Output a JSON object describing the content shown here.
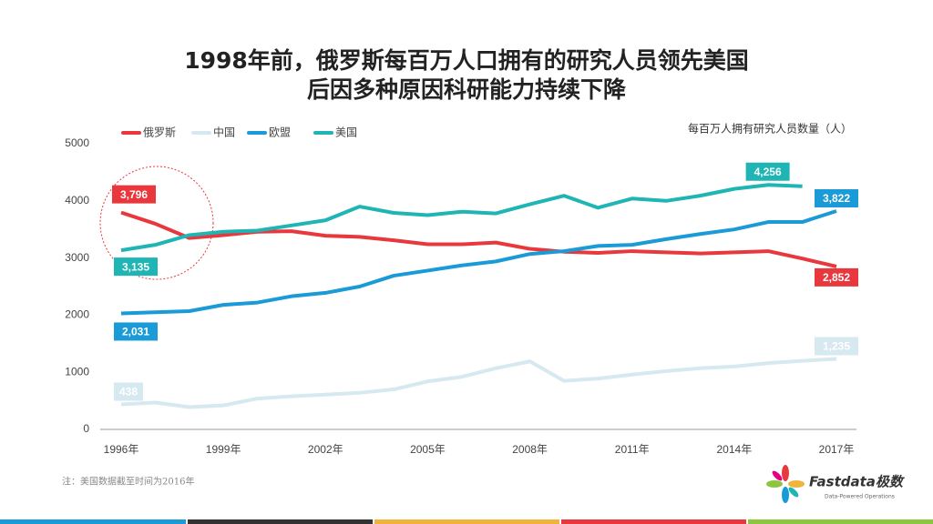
{
  "chart_data": {
    "type": "line",
    "title": [
      "1998年前，俄罗斯每百万人口拥有的研究人员领先美国",
      "后因多种原因科研能力持续下降"
    ],
    "y_label": "每百万人拥有研究人员数量（人）",
    "note": "注：美国数据截至时间为2016年",
    "logo": {
      "name": "Fastdata极数",
      "tagline": "Data-Powered Operations"
    },
    "categories": [
      "1996年",
      null,
      null,
      "1999年",
      null,
      null,
      "2002年",
      null,
      null,
      "2005年",
      null,
      null,
      "2008年",
      null,
      null,
      "2011年",
      null,
      null,
      "2014年",
      null,
      null,
      "2017年"
    ],
    "ylim": [
      0,
      5000
    ],
    "yticks": [
      0,
      1000,
      2000,
      3000,
      4000,
      5000
    ],
    "series": [
      {
        "name": "俄罗斯",
        "color": "#e8383d",
        "values": [
          3796,
          3600,
          3350,
          3400,
          3460,
          3470,
          3390,
          3370,
          3310,
          3240,
          3240,
          3270,
          3160,
          3110,
          3090,
          3120,
          3100,
          3080,
          3100,
          3120,
          2990,
          2852
        ],
        "value_labels": [
          "3,796",
          null,
          null,
          null,
          null,
          null,
          null,
          null,
          null,
          null,
          null,
          null,
          null,
          null,
          null,
          null,
          null,
          null,
          null,
          null,
          null,
          "2,852"
        ]
      },
      {
        "name": "中国",
        "color": "#d6e8f0",
        "values": [
          438,
          470,
          390,
          420,
          540,
          580,
          610,
          640,
          700,
          840,
          920,
          1070,
          1190,
          850,
          890,
          960,
          1020,
          1070,
          1100,
          1160,
          1200,
          1235
        ],
        "value_labels": [
          "438",
          null,
          null,
          null,
          null,
          null,
          null,
          null,
          null,
          null,
          null,
          null,
          null,
          null,
          null,
          null,
          null,
          null,
          null,
          null,
          null,
          "1,235"
        ]
      },
      {
        "name": "欧盟",
        "color": "#1a9bd7",
        "values": [
          2031,
          2050,
          2070,
          2180,
          2220,
          2330,
          2390,
          2500,
          2690,
          2780,
          2870,
          2940,
          3070,
          3120,
          3210,
          3230,
          3330,
          3420,
          3500,
          3630,
          3630,
          3822
        ],
        "value_labels": [
          "2,031",
          null,
          null,
          null,
          null,
          null,
          null,
          null,
          null,
          null,
          null,
          null,
          null,
          null,
          null,
          null,
          null,
          null,
          null,
          null,
          null,
          "3,822"
        ]
      },
      {
        "name": "美国",
        "color": "#1fb5b4",
        "values": [
          3135,
          3230,
          3400,
          3460,
          3480,
          3570,
          3660,
          3900,
          3790,
          3750,
          3810,
          3780,
          3940,
          4090,
          3880,
          4040,
          4000,
          4090,
          4210,
          4280,
          4256,
          null
        ],
        "value_labels": [
          "3,135",
          null,
          null,
          null,
          null,
          null,
          null,
          null,
          null,
          null,
          null,
          null,
          null,
          null,
          null,
          null,
          null,
          null,
          null,
          null,
          "4,256",
          null
        ]
      }
    ]
  }
}
